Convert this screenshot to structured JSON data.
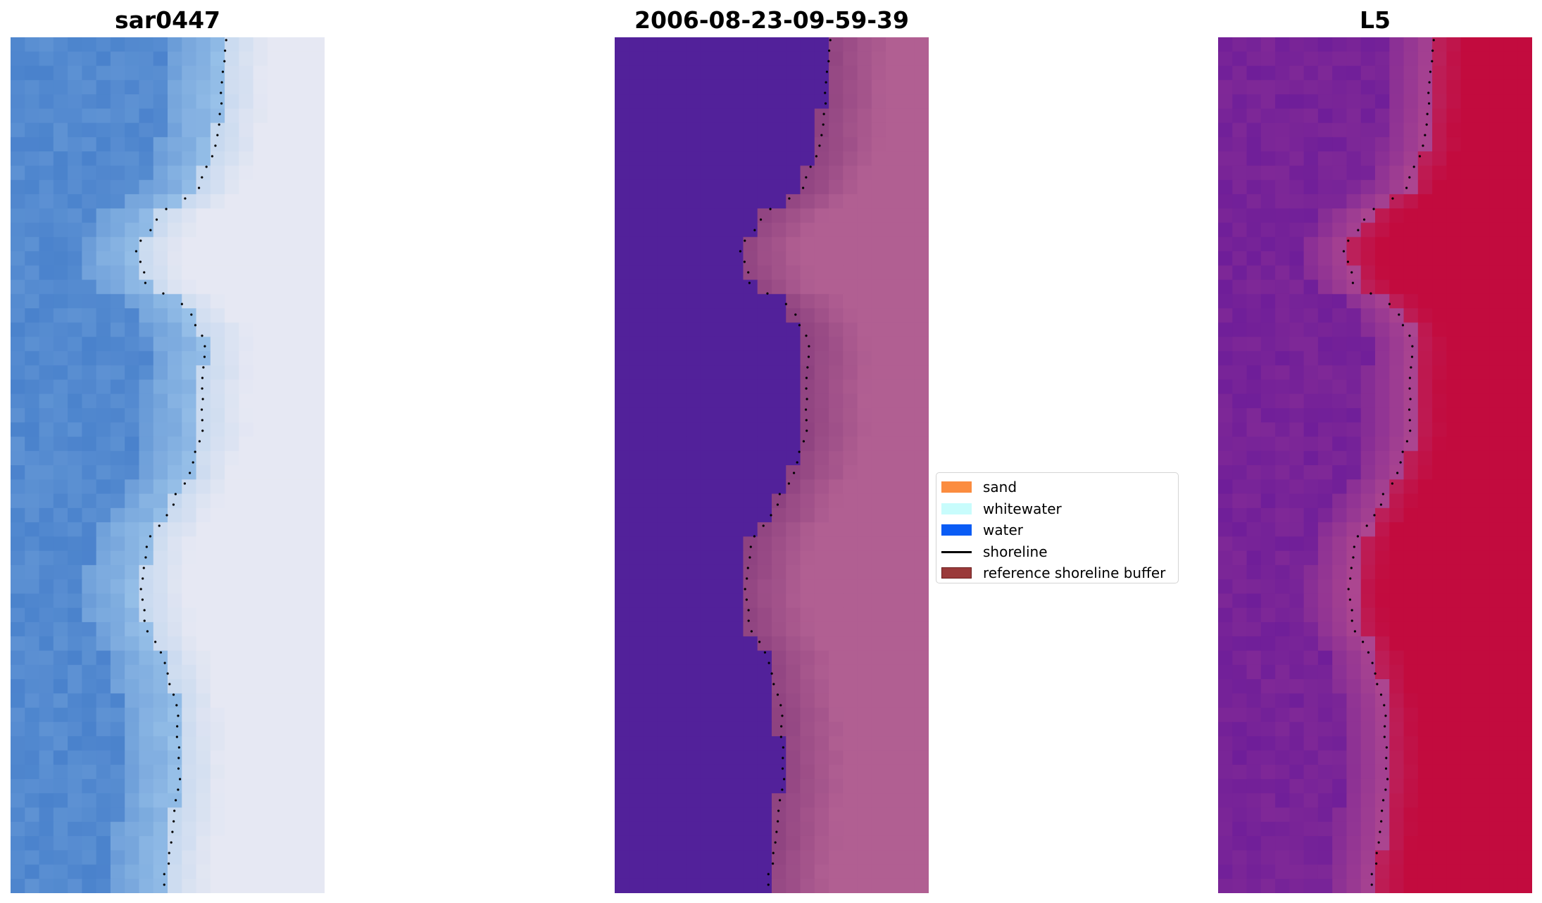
{
  "figure": {
    "panels": [
      {
        "id": "left",
        "title": "sar0447",
        "style": "rgb"
      },
      {
        "id": "center",
        "title": "2006-08-23-09-59-39",
        "style": "classified"
      },
      {
        "id": "right",
        "title": "L5",
        "style": "index"
      }
    ],
    "legend": {
      "items": [
        {
          "label": "sand",
          "kind": "patch",
          "color": "#fb8c3f"
        },
        {
          "label": "whitewater",
          "kind": "patch",
          "color": "#c8fcfc"
        },
        {
          "label": "water",
          "kind": "patch",
          "color": "#0a5cf5"
        },
        {
          "label": "shoreline",
          "kind": "line",
          "color": "#000000"
        },
        {
          "label": "reference shoreline buffer",
          "kind": "patch",
          "color": "#9a3a3a",
          "edge": "#6b1e1e"
        }
      ]
    },
    "colors": {
      "water_rgb": "#4a82cc",
      "surf_rgb": "#9cc4ea",
      "beach_rgb": "#e6e8f3",
      "class_water": "#52219a",
      "class_sand": "#b15f92",
      "buffer_tint": "#8e4280",
      "index_low": "#6f1e99",
      "index_mid": "#b0488f",
      "index_high": "#c20b3e",
      "shoreline_dots": "#000000"
    }
  }
}
